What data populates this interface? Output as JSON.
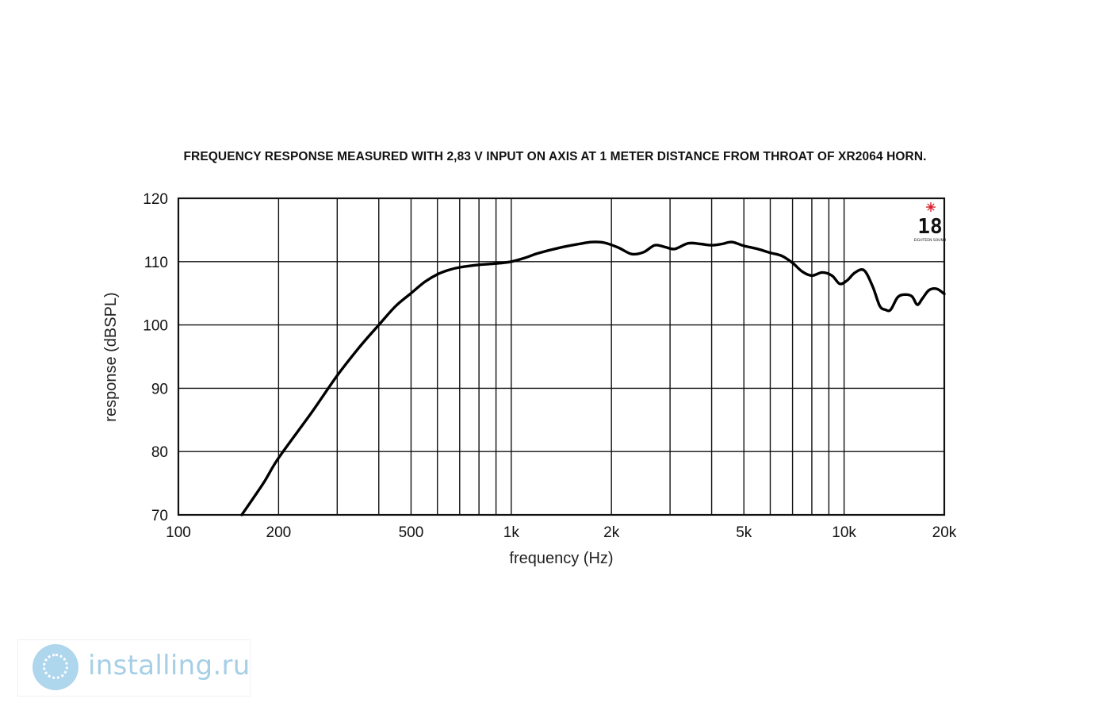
{
  "chart_data": {
    "type": "line",
    "title": "FREQUENCY RESPONSE MEASURED WITH 2,83 V INPUT ON AXIS AT 1 METER DISTANCE FROM THROAT OF XR2064 HORN.",
    "xlabel": "frequency (Hz)",
    "ylabel": "response (dBSPL)",
    "x_scale": "log",
    "xlim": [
      100,
      20000
    ],
    "ylim": [
      70,
      120
    ],
    "x_ticks": [
      {
        "value": 100,
        "label": "100"
      },
      {
        "value": 200,
        "label": "200"
      },
      {
        "value": 500,
        "label": "500"
      },
      {
        "value": 1000,
        "label": "1k"
      },
      {
        "value": 2000,
        "label": "2k"
      },
      {
        "value": 5000,
        "label": "5k"
      },
      {
        "value": 10000,
        "label": "10k"
      },
      {
        "value": 20000,
        "label": "20k"
      }
    ],
    "y_ticks": [
      70,
      80,
      90,
      100,
      110,
      120
    ],
    "grid": true,
    "series": [
      {
        "x": [
          155,
          180,
          200,
          250,
          300,
          350,
          400,
          450,
          500,
          550,
          600,
          650,
          700,
          800,
          900,
          1000,
          1100,
          1200,
          1400,
          1600,
          1750,
          1900,
          2100,
          2300,
          2500,
          2700,
          2900,
          3100,
          3400,
          3700,
          4000,
          4300,
          4600,
          5000,
          5500,
          6000,
          6500,
          7000,
          7500,
          8000,
          8600,
          9200,
          9700,
          10200,
          10800,
          11500,
          12200,
          12800,
          13300,
          13800,
          14500,
          15300,
          16000,
          16600,
          17200,
          18000,
          19000,
          20000
        ],
        "y": [
          70,
          75,
          79,
          86,
          92,
          96.5,
          100,
          103,
          105,
          106.8,
          108,
          108.7,
          109.1,
          109.5,
          109.7,
          110,
          110.6,
          111.3,
          112.2,
          112.8,
          113.1,
          113,
          112.2,
          111.2,
          111.5,
          112.6,
          112.3,
          112,
          112.9,
          112.8,
          112.6,
          112.8,
          113.1,
          112.5,
          112,
          111.4,
          110.9,
          109.8,
          108.4,
          107.8,
          108.3,
          107.8,
          106.5,
          107,
          108.3,
          108.6,
          106,
          103,
          102.4,
          102.4,
          104.4,
          104.8,
          104.5,
          103.2,
          104.2,
          105.5,
          105.7,
          104.9
        ]
      }
    ]
  },
  "logo": {
    "text": "18",
    "caption": "EIGHTEEN SOUND",
    "mark_color": "#d9232e"
  },
  "watermark": {
    "text": "installing.ru",
    "color": "#a6cfe6"
  }
}
